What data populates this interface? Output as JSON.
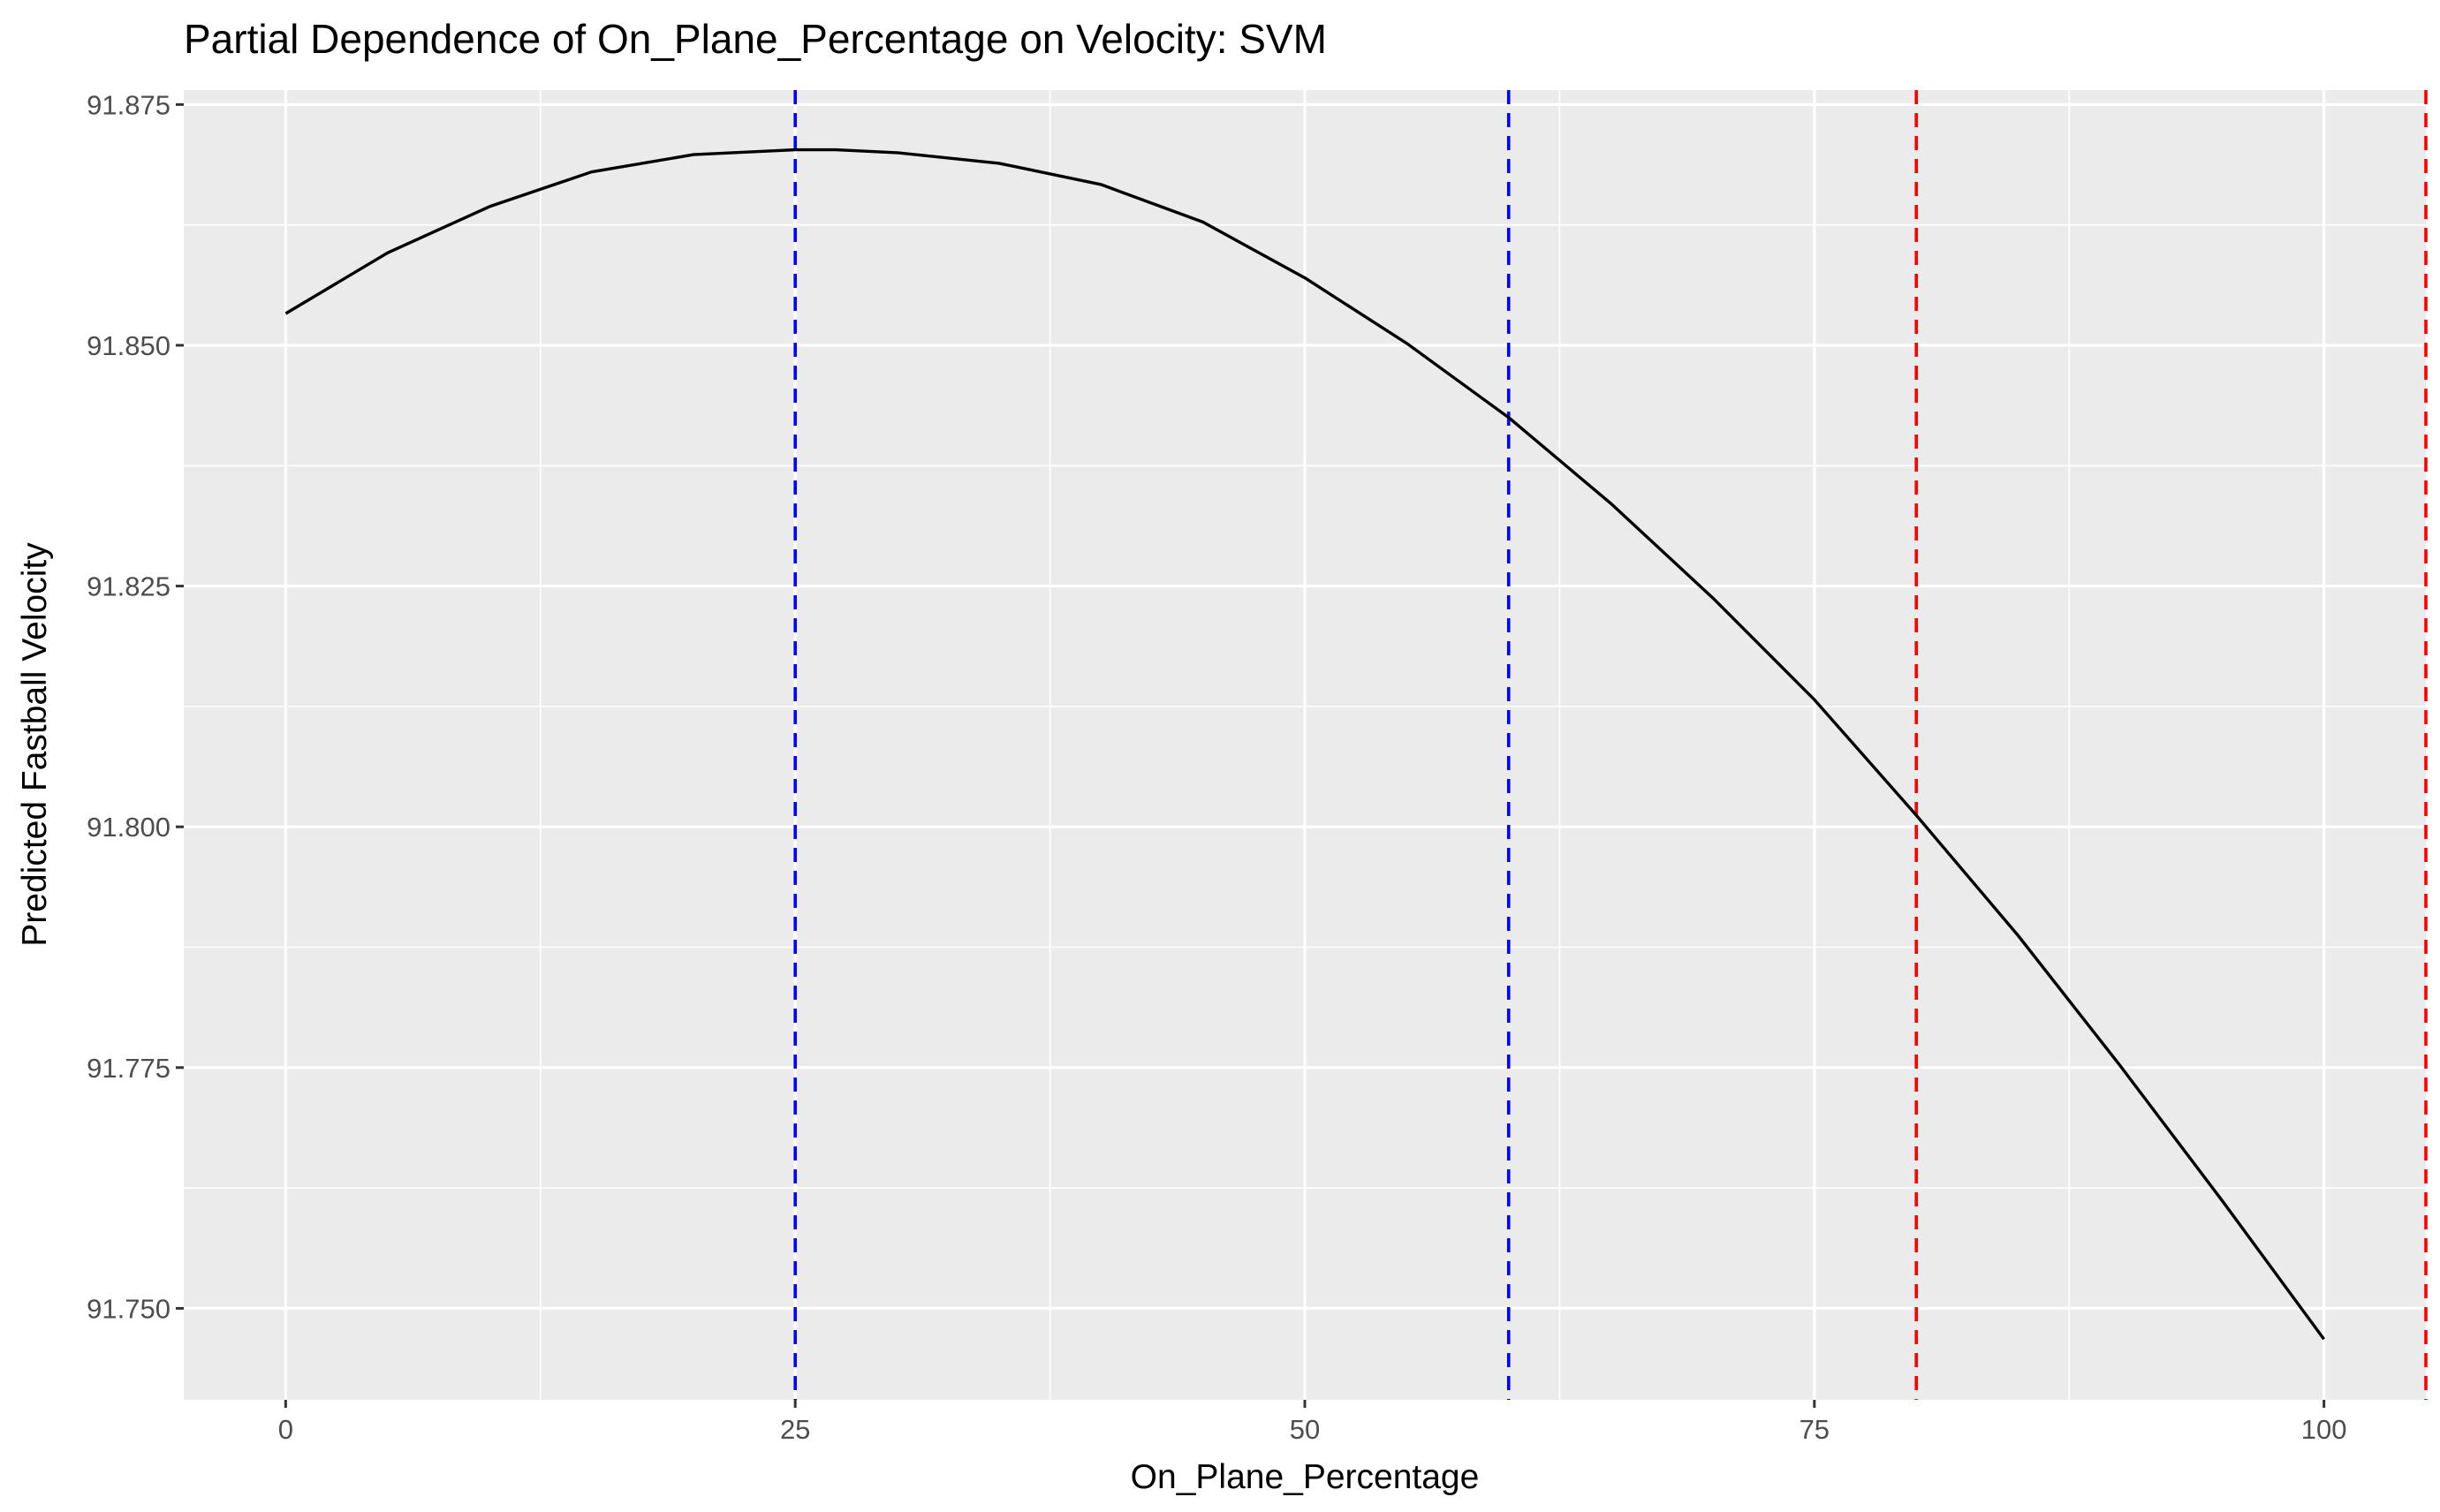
{
  "chart_data": {
    "type": "line",
    "title": "Partial Dependence of On_Plane_Percentage on Velocity: SVM",
    "xlabel": "On_Plane_Percentage",
    "ylabel": "Predicted Fastball Velocity",
    "xlim": [
      -5,
      105
    ],
    "ylim": [
      91.7405,
      91.8765
    ],
    "x_ticks": [
      0,
      25,
      50,
      75,
      100
    ],
    "x_tick_labels": [
      "0",
      "25",
      "50",
      "75",
      "100"
    ],
    "y_ticks": [
      91.75,
      91.775,
      91.8,
      91.825,
      91.85,
      91.875
    ],
    "y_tick_labels": [
      "91.750",
      "91.775",
      "91.800",
      "91.825",
      "91.850",
      "91.875"
    ],
    "grid": true,
    "background": "#ebebeb",
    "series": [
      {
        "color": "#000000",
        "x": [
          0,
          5,
          10,
          15,
          20,
          25,
          27,
          30,
          35,
          40,
          45,
          50,
          55,
          60,
          65,
          70,
          75,
          80,
          85,
          90,
          95,
          100
        ],
        "values": [
          91.8533,
          91.8596,
          91.8644,
          91.868,
          91.8698,
          91.8703,
          91.8703,
          91.87,
          91.8689,
          91.8667,
          91.8628,
          91.857,
          91.8502,
          91.8425,
          91.8336,
          91.8238,
          91.8132,
          91.8012,
          91.7887,
          91.7752,
          91.7612,
          91.7468
        ]
      }
    ],
    "reference_lines": [
      {
        "x": 25,
        "color": "#0000ff"
      },
      {
        "x": 60,
        "color": "#0000ff"
      },
      {
        "x": 80,
        "color": "#ff0000"
      },
      {
        "x": 105,
        "color": "#ff0000"
      }
    ]
  }
}
